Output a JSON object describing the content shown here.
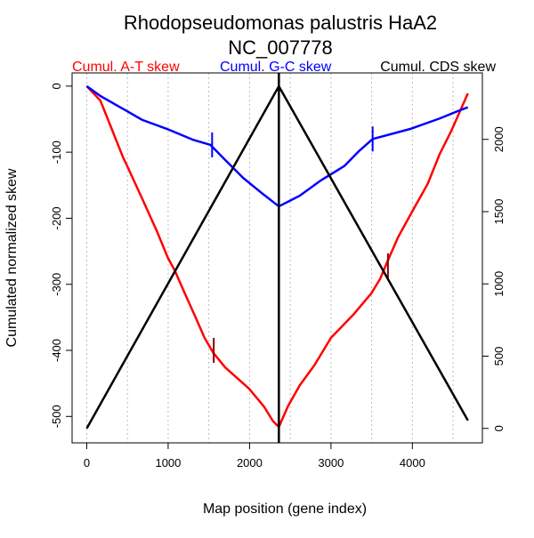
{
  "chart_data": {
    "type": "line",
    "title": "Rhodopseudomonas palustris HaA2",
    "subtitle": "NC_007778",
    "xlabel": "Map position (gene index)",
    "ylabel": "Cumulated normalized skew",
    "xlim": [
      -180,
      4860
    ],
    "ylim": [
      -540,
      20
    ],
    "y2lim": [
      -100,
      2460
    ],
    "xticks": [
      0,
      1000,
      2000,
      3000,
      4000
    ],
    "yticks": [
      0,
      -100,
      -200,
      -300,
      -400,
      -500
    ],
    "y2ticks": [
      0,
      500,
      1000,
      1500,
      2000
    ],
    "grid_x": [
      0,
      500,
      1000,
      1500,
      2000,
      2500,
      3000,
      3500,
      4000,
      4500
    ],
    "vline_x": 2360,
    "legend": [
      {
        "label": "Cumul. A-T skew",
        "color": "#ff0000"
      },
      {
        "label": "Cumul. G-C skew",
        "color": "#0000ff"
      },
      {
        "label": "Cumul. CDS skew",
        "color": "#000000"
      }
    ],
    "series": [
      {
        "name": "Cumul. A-T skew",
        "color": "#ff0000",
        "axis": "left",
        "x": [
          0,
          168,
          314,
          443,
          497,
          680,
          863,
          997,
          1081,
          1191,
          1337,
          1447,
          1556,
          1702,
          1994,
          2177,
          2287,
          2360,
          2470,
          2616,
          2799,
          3000,
          3274,
          3494,
          3603,
          3695,
          3823,
          4006,
          4188,
          4335,
          4481,
          4682
        ],
        "y": [
          0,
          -22,
          -67,
          -107,
          -121,
          -170,
          -220,
          -260,
          -279,
          -310,
          -350,
          -381,
          -404,
          -426,
          -458,
          -485,
          -507,
          -516,
          -485,
          -453,
          -422,
          -381,
          -346,
          -314,
          -292,
          -265,
          -229,
          -188,
          -148,
          -103,
          -67,
          -11
        ],
        "markers": [
          {
            "x": 1560,
            "y": -400
          },
          {
            "x": 3700,
            "y": -272
          }
        ],
        "marker_color": "#8b0000"
      },
      {
        "name": "Cumul. G-C skew",
        "color": "#0000ff",
        "axis": "left",
        "x": [
          0,
          168,
          497,
          680,
          990,
          1301,
          1520,
          1702,
          1922,
          2141,
          2360,
          2616,
          2872,
          3164,
          3347,
          3512,
          3969,
          4335,
          4554,
          4682
        ],
        "y": [
          0,
          -15,
          -38,
          -51,
          -65,
          -81,
          -89,
          -112,
          -139,
          -161,
          -182,
          -166,
          -143,
          -121,
          -98,
          -80,
          -65,
          -49,
          -38,
          -32
        ],
        "markers": [
          {
            "x": 1540,
            "y": -89
          },
          {
            "x": 3512,
            "y": -80
          }
        ],
        "marker_color": "#0000ff"
      },
      {
        "name": "Cumul. CDS skew",
        "color": "#000000",
        "axis": "right",
        "x": [
          0,
          2360,
          4682
        ],
        "y": [
          0,
          2368,
          55
        ]
      }
    ]
  }
}
